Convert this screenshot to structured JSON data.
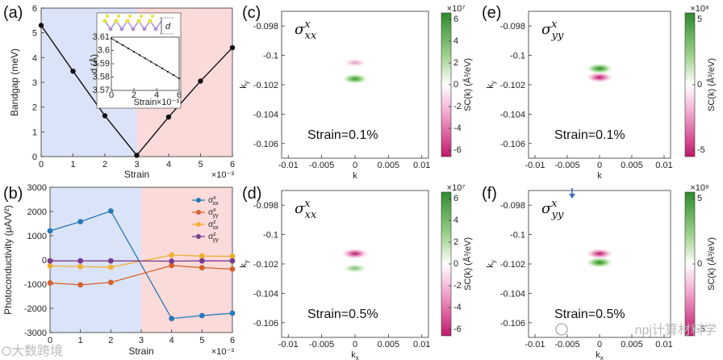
{
  "panels": {
    "a": "(a)",
    "b": "(b)",
    "c": "(c)",
    "d": "(d)",
    "e": "(e)",
    "f": "(f)"
  },
  "chart_data": [
    {
      "id": "a",
      "type": "line",
      "title": "",
      "xlabel": "Strain",
      "ylabel": "Bandgap (meV)",
      "x_exponent": "×10⁻³",
      "x": [
        0,
        1,
        2,
        3,
        4,
        5,
        6
      ],
      "values": [
        5.3,
        3.45,
        1.65,
        0.05,
        1.6,
        3.05,
        4.4
      ],
      "xlim": [
        0,
        6
      ],
      "ylim": [
        0,
        6
      ],
      "xticks": [
        "0",
        "1",
        "2",
        "3",
        "4",
        "5",
        "6"
      ],
      "yticks": [
        "0",
        "1",
        "2",
        "3",
        "4",
        "5",
        "6"
      ],
      "shading": {
        "left": "#dbe3f8",
        "right": "#fbdada",
        "split": 3
      },
      "inset": {
        "xlabel": "Strain",
        "ylabel": "d (Å)",
        "x_exponent": "×10⁻³",
        "x": [
          0,
          0.5,
          1,
          1.5,
          2,
          2.5,
          3,
          3.5,
          4,
          4.5,
          5,
          5.5,
          6
        ],
        "values": [
          3.609,
          3.6065,
          3.604,
          3.6015,
          3.599,
          3.5965,
          3.594,
          3.5915,
          3.589,
          3.5865,
          3.584,
          3.5815,
          3.579
        ],
        "xlim": [
          0,
          6
        ],
        "ylim": [
          3.57,
          3.61
        ],
        "xticks": [
          "0",
          "2",
          "4",
          "6"
        ],
        "yticks": [
          "3.57",
          "3.58",
          "3.59",
          "3.6",
          "3.61"
        ],
        "marker_label": "d"
      }
    },
    {
      "id": "b",
      "type": "line",
      "xlabel": "Strain",
      "ylabel": "Photoconductivity (μA/V²)",
      "x_exponent": "×10⁻³",
      "x": [
        0,
        1,
        2,
        4,
        5,
        6
      ],
      "xlim": [
        0,
        6
      ],
      "ylim": [
        -3000,
        3000
      ],
      "xticks": [
        "0",
        "1",
        "2",
        "3",
        "4",
        "5",
        "6"
      ],
      "yticks": [
        "-3000",
        "-2000",
        "-1000",
        "0",
        "1000",
        "2000",
        "3000"
      ],
      "shading": {
        "left": "#dbe3f8",
        "right": "#fbdada",
        "split": 3
      },
      "series": [
        {
          "name": "σˣₓₓ",
          "base": "σ",
          "sup": "x",
          "sub": "xx",
          "color": "#2878b5",
          "values": [
            1200,
            1580,
            2020,
            -2420,
            -2300,
            -2200
          ]
        },
        {
          "name": "σˣᵧᵧ",
          "base": "σ",
          "sup": "x",
          "sub": "yy",
          "color": "#d4622a",
          "values": [
            -950,
            -1030,
            -930,
            -230,
            -320,
            -380
          ]
        },
        {
          "name": "σᶻₓₓ",
          "base": "σ",
          "sup": "z",
          "sub": "xx",
          "color": "#f0b030",
          "values": [
            -250,
            -280,
            -300,
            200,
            160,
            150
          ]
        },
        {
          "name": "σᶻᵧᵧ",
          "base": "σ",
          "sup": "z",
          "sub": "yy",
          "color": "#7a3b8f",
          "values": [
            -40,
            -40,
            -40,
            -50,
            -40,
            -40
          ]
        }
      ]
    },
    {
      "id": "c",
      "type": "heatmap",
      "sigma": "σ",
      "sigma_sup": "x",
      "sigma_sub": "xx",
      "strain_text": "Strain=0.1%",
      "xlabel": "k",
      "ylabel": "k",
      "ylabel_sub": "y",
      "xticks": [
        "-0.01",
        "-0.005",
        "0",
        "0.005",
        "0.01"
      ],
      "yticks": [
        "-0.098",
        "-0.1",
        "-0.102",
        "-0.104",
        "-0.106"
      ],
      "cbar_label": "SC(k) (Å³/eV)",
      "cbar_exponent": "×10⁷",
      "cbar_ticks": [
        "6",
        "4",
        "2",
        "0",
        "-2",
        "-4",
        "-6"
      ],
      "blobs": [
        {
          "kx": 0,
          "ky": -0.1005,
          "sign": "pink",
          "strength": 0.25
        },
        {
          "kx": 0,
          "ky": -0.1016,
          "sign": "green",
          "strength": 0.9
        }
      ]
    },
    {
      "id": "d",
      "type": "heatmap",
      "sigma": "σ",
      "sigma_sup": "x",
      "sigma_sub": "xx",
      "strain_text": "Strain=0.5%",
      "xlabel": "k",
      "xlabel_sub": "x",
      "ylabel": "k",
      "ylabel_sub": "y",
      "xticks": [
        "-0.01",
        "-0.005",
        "0",
        "0.005",
        "0.01"
      ],
      "yticks": [
        "-0.098",
        "-0.1",
        "-0.102",
        "-0.104",
        "-0.106"
      ],
      "cbar_label": "SC(k) (Å³/eV)",
      "cbar_exponent": "×10⁷",
      "cbar_ticks": [
        "6",
        "4",
        "2",
        "0",
        "-2",
        "-4",
        "-6"
      ],
      "blobs": [
        {
          "kx": 0,
          "ky": -0.1013,
          "sign": "pink",
          "strength": 1.0
        },
        {
          "kx": 0,
          "ky": -0.1023,
          "sign": "green",
          "strength": 0.45
        }
      ]
    },
    {
      "id": "e",
      "type": "heatmap",
      "sigma": "σ",
      "sigma_sup": "x",
      "sigma_sub": "yy",
      "strain_text": "Strain=0.1%",
      "xlabel": "k",
      "ylabel": "k",
      "ylabel_sub": "y",
      "xticks": [
        "-0.01",
        "-0.005",
        "0",
        "0.005",
        "0.01"
      ],
      "yticks": [
        "-0.098",
        "-0.1",
        "-0.102",
        "-0.104",
        "-0.106"
      ],
      "cbar_label": "SC(k) (Å³/eV)",
      "cbar_exponent": "×10⁸",
      "cbar_ticks": [
        "5",
        "0",
        "-5"
      ],
      "blobs": [
        {
          "kx": 0,
          "ky": -0.1009,
          "sign": "green",
          "strength": 1.0
        },
        {
          "kx": 0,
          "ky": -0.1015,
          "sign": "pink",
          "strength": 1.0
        }
      ]
    },
    {
      "id": "f",
      "type": "heatmap",
      "sigma": "σ",
      "sigma_sup": "x",
      "sigma_sub": "yy",
      "strain_text": "Strain=0.5%",
      "xlabel": "k",
      "xlabel_sub": "x",
      "ylabel": "k",
      "ylabel_sub": "y",
      "xticks": [
        "-0.01",
        "-0.005",
        "0",
        "0.005",
        "0.01"
      ],
      "yticks": [
        "-0.098",
        "-0.1",
        "-0.102",
        "-0.104",
        "-0.106"
      ],
      "cbar_label": "SC(k) (Å³/eV)",
      "cbar_exponent": "×10⁸",
      "cbar_ticks": [
        "5",
        "0",
        "-5"
      ],
      "blobs": [
        {
          "kx": 0,
          "ky": -0.1013,
          "sign": "pink",
          "strength": 1.0
        },
        {
          "kx": 0,
          "ky": -0.1019,
          "sign": "green",
          "strength": 1.0
        }
      ]
    }
  ],
  "watermarks": {
    "left": "大数跨境",
    "right": "npj计算材料学"
  },
  "colors": {
    "green": "#2e8b2e",
    "pink": "#c2186b",
    "line": "#111111"
  }
}
